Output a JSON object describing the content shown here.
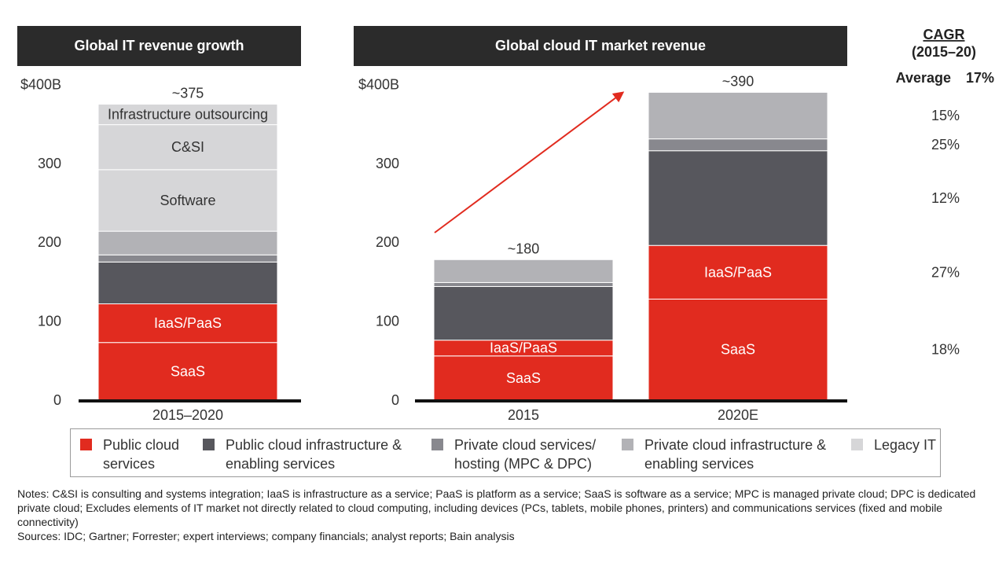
{
  "chart_data": [
    {
      "type": "bar",
      "stacked": true,
      "title": "Global IT revenue growth",
      "categories": [
        "2015–2020"
      ],
      "ylim": [
        0,
        400
      ],
      "yticks": [
        0,
        100,
        200,
        300,
        400
      ],
      "ytick_labels": [
        "0",
        "100",
        "200",
        "300",
        "$400B"
      ],
      "totals": [
        "~375"
      ],
      "series": [
        {
          "name": "SaaS",
          "color": "#e12b1f",
          "values": [
            73
          ]
        },
        {
          "name": "IaaS/PaaS",
          "color": "#e12b1f",
          "values": [
            49
          ]
        },
        {
          "color": "#57575d",
          "values": [
            53
          ]
        },
        {
          "color": "#88888e",
          "values": [
            9
          ]
        },
        {
          "color": "#b2b2b6",
          "values": [
            30
          ]
        },
        {
          "name": "Software",
          "color": "#d6d6d8",
          "values": [
            78
          ]
        },
        {
          "name": "C&SI",
          "color": "#d6d6d8",
          "values": [
            57
          ]
        },
        {
          "name": "Infrastructure outsourcing",
          "color": "#d6d6d8",
          "values": [
            26
          ]
        }
      ]
    },
    {
      "type": "bar",
      "stacked": true,
      "title": "Global cloud IT market revenue",
      "categories": [
        "2015",
        "2020E"
      ],
      "ylim": [
        0,
        400
      ],
      "yticks": [
        0,
        100,
        200,
        300,
        400
      ],
      "ytick_labels": [
        "0",
        "100",
        "200",
        "300",
        "$400B"
      ],
      "totals": [
        "~180",
        "~390"
      ],
      "series": [
        {
          "name": "SaaS",
          "color": "#e12b1f",
          "values": [
            56,
            128
          ],
          "cagr": "18%"
        },
        {
          "name": "IaaS/PaaS",
          "color": "#e12b1f",
          "values": [
            20,
            68
          ],
          "cagr": "27%"
        },
        {
          "color": "#57575d",
          "values": [
            68,
            120
          ],
          "cagr": "12%"
        },
        {
          "color": "#88888e",
          "values": [
            5,
            15
          ],
          "cagr": "25%"
        },
        {
          "color": "#b2b2b6",
          "values": [
            29,
            59
          ],
          "cagr": "15%"
        }
      ]
    }
  ],
  "titles": {
    "left": "Global IT revenue growth",
    "right": "Global cloud IT market revenue"
  },
  "cagr": {
    "header_line1": "CAGR",
    "header_line2": "(2015–20)",
    "average_label": "Average",
    "average_value": "17%"
  },
  "legend": [
    {
      "label": "Public cloud\nservices",
      "color": "#e12b1f"
    },
    {
      "label": "Public cloud infrastructure &\nenabling services",
      "color": "#57575d"
    },
    {
      "label": "Private cloud services/\nhosting (MPC & DPC)",
      "color": "#88888e"
    },
    {
      "label": "Private cloud infrastructure &\nenabling services",
      "color": "#b2b2b6"
    },
    {
      "label": "Legacy IT",
      "color": "#d6d6d8"
    }
  ],
  "notes": {
    "line1": "Notes: C&SI is consulting and systems integration; IaaS is infrastructure as a service; PaaS is platform as a service; SaaS is software as a service; MPC is managed private cloud; DPC is dedicated private cloud; Excludes elements of IT market not directly related to cloud computing, including devices (PCs, tablets, mobile phones, printers) and communications services (fixed and mobile connectivity)",
    "line2": "Sources: IDC; Gartner; Forrester; expert interviews; company financials; analyst reports; Bain analysis"
  }
}
